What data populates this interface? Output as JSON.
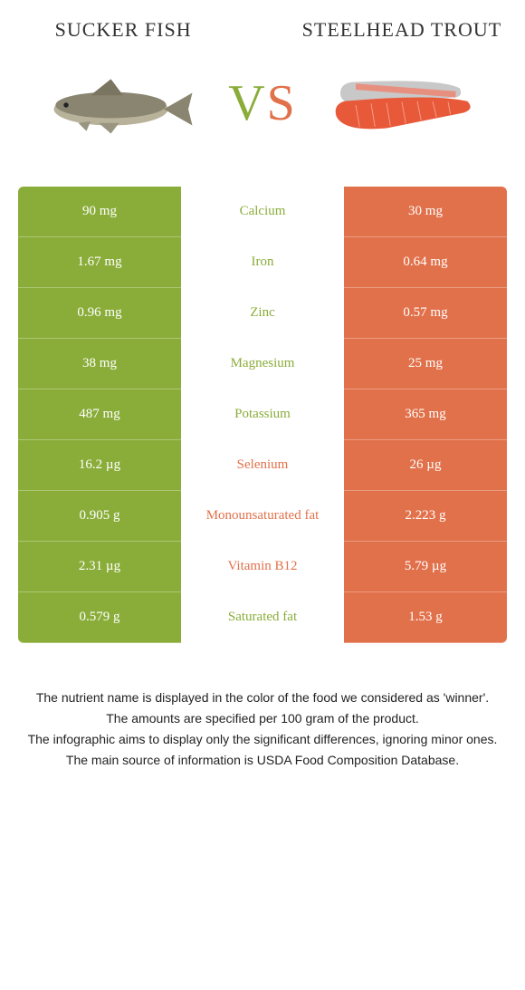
{
  "colors": {
    "left": "#8aad3a",
    "right": "#e1714b",
    "left_text": "#8aad3a",
    "right_text": "#e1714b"
  },
  "header": {
    "left_title": "Sucker Fish",
    "right_title": "Steelhead trout",
    "vs_v": "V",
    "vs_s": "S"
  },
  "rows": [
    {
      "left": "90 mg",
      "label": "Calcium",
      "right": "30 mg",
      "winner": "left"
    },
    {
      "left": "1.67 mg",
      "label": "Iron",
      "right": "0.64 mg",
      "winner": "left"
    },
    {
      "left": "0.96 mg",
      "label": "Zinc",
      "right": "0.57 mg",
      "winner": "left"
    },
    {
      "left": "38 mg",
      "label": "Magnesium",
      "right": "25 mg",
      "winner": "left"
    },
    {
      "left": "487 mg",
      "label": "Potassium",
      "right": "365 mg",
      "winner": "left"
    },
    {
      "left": "16.2 µg",
      "label": "Selenium",
      "right": "26 µg",
      "winner": "right"
    },
    {
      "left": "0.905 g",
      "label": "Monounsaturated fat",
      "right": "2.223 g",
      "winner": "right"
    },
    {
      "left": "2.31 µg",
      "label": "Vitamin B12",
      "right": "5.79 µg",
      "winner": "right"
    },
    {
      "left": "0.579 g",
      "label": "Saturated fat",
      "right": "1.53 g",
      "winner": "left"
    }
  ],
  "footnotes": [
    "The nutrient name is displayed in the color of the food we considered as 'winner'.",
    "The amounts are specified per 100 gram of the product.",
    "The infographic aims to display only the significant differences, ignoring minor ones.",
    "The main source of information is USDA Food Composition Database."
  ]
}
